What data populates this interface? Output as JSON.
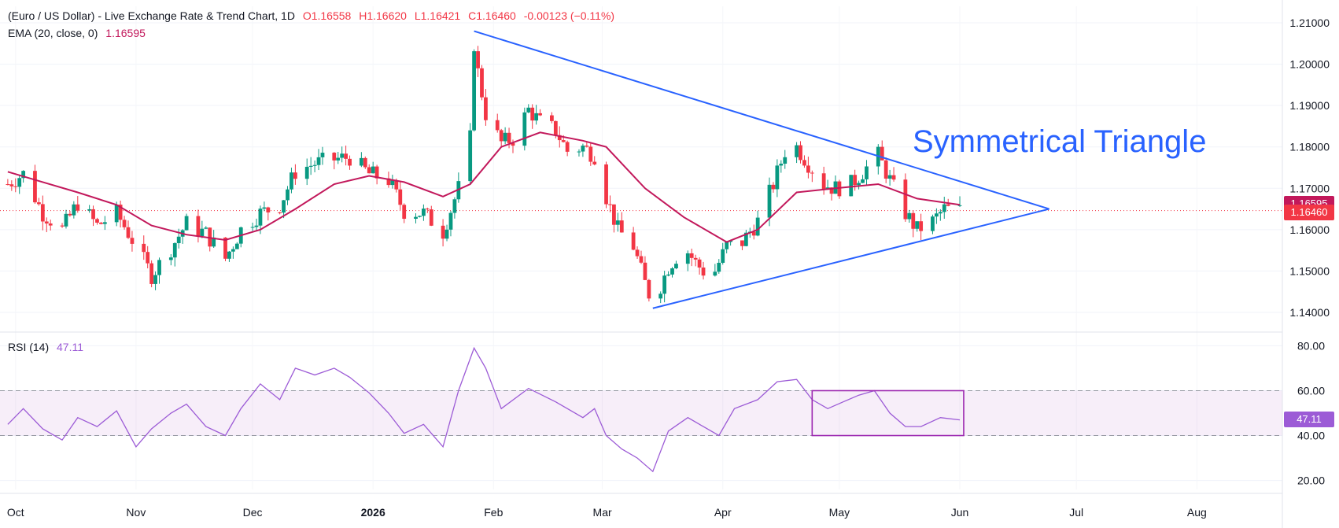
{
  "header": {
    "symbol": "(Euro / US Dollar) - Live Exchange Rate & Trend Chart, 1D",
    "open": "O1.16558",
    "high": "H1.16620",
    "low": "L1.16421",
    "close": "C1.16460",
    "change": "-0.00123 (−0.11%)",
    "ema_label": "EMA (20, close, 0)",
    "ema_value": "1.16595",
    "rsi_label": "RSI (14)",
    "rsi_value": "47.11"
  },
  "annotation": "Symmetrical Triangle",
  "price_tags": {
    "ema": "1.16595",
    "close": "1.16460",
    "rsi": "47.11"
  },
  "colors": {
    "up": "#089981",
    "down": "#f23645",
    "ema": "#c2185b",
    "rsi": "#9c5bd6",
    "trend": "#2962ff",
    "box": "#9c27b0"
  },
  "chart_data": {
    "type": "candlestick",
    "price_axis": {
      "ylim": [
        1.136,
        1.214
      ],
      "ticks": [
        "1.21000",
        "1.20000",
        "1.19000",
        "1.18000",
        "1.17000",
        "1.16000",
        "1.15000",
        "1.14000"
      ]
    },
    "rsi_axis": {
      "ylim": [
        16,
        84
      ],
      "ticks": [
        "80.00",
        "60.00",
        "40.00",
        "20.00"
      ],
      "band": [
        40,
        60
      ]
    },
    "x_labels": [
      {
        "date": "2025-10-01",
        "label": "Oct"
      },
      {
        "date": "2025-11-01",
        "label": "Nov"
      },
      {
        "date": "2025-12-01",
        "label": "Dec"
      },
      {
        "date": "2026-01-01",
        "label": "2026"
      },
      {
        "date": "2026-02-01",
        "label": "Feb"
      },
      {
        "date": "2026-03-01",
        "label": "Mar"
      },
      {
        "date": "2026-04-01",
        "label": "Apr"
      },
      {
        "date": "2026-05-01",
        "label": "May"
      },
      {
        "date": "2026-06-01",
        "label": "Jun"
      },
      {
        "date": "2026-07-01",
        "label": "Jul"
      },
      {
        "date": "2026-08-01",
        "label": "Aug"
      }
    ],
    "x_range": [
      "2025-09-27",
      "2026-08-23"
    ],
    "close_series": [
      [
        "2025-09-29",
        1.171
      ],
      [
        "2025-10-03",
        1.1735
      ],
      [
        "2025-10-08",
        1.164
      ],
      [
        "2025-10-13",
        1.16
      ],
      [
        "2025-10-17",
        1.1665
      ],
      [
        "2025-10-22",
        1.161
      ],
      [
        "2025-10-27",
        1.164
      ],
      [
        "2025-11-01",
        1.156
      ],
      [
        "2025-11-05",
        1.149
      ],
      [
        "2025-11-10",
        1.1555
      ],
      [
        "2025-11-14",
        1.1615
      ],
      [
        "2025-11-19",
        1.159
      ],
      [
        "2025-11-24",
        1.153
      ],
      [
        "2025-11-28",
        1.16
      ],
      [
        "2025-12-03",
        1.164
      ],
      [
        "2025-12-08",
        1.166
      ],
      [
        "2025-12-12",
        1.174
      ],
      [
        "2025-12-17",
        1.176
      ],
      [
        "2025-12-22",
        1.177
      ],
      [
        "2025-12-26",
        1.1775
      ],
      [
        "2025-12-31",
        1.1735
      ],
      [
        "2026-01-05",
        1.172
      ],
      [
        "2026-01-09",
        1.1645
      ],
      [
        "2026-01-14",
        1.164
      ],
      [
        "2026-01-19",
        1.1595
      ],
      [
        "2026-01-23",
        1.17
      ],
      [
        "2026-01-26",
        1.182
      ],
      [
        "2026-01-27",
        1.205
      ],
      [
        "2026-01-28",
        1.198
      ],
      [
        "2026-01-30",
        1.188
      ],
      [
        "2026-02-03",
        1.181
      ],
      [
        "2026-02-06",
        1.182
      ],
      [
        "2026-02-10",
        1.189
      ],
      [
        "2026-02-13",
        1.186
      ],
      [
        "2026-02-17",
        1.184
      ],
      [
        "2026-02-20",
        1.179
      ],
      [
        "2026-02-24",
        1.18
      ],
      [
        "2026-02-27",
        1.178
      ],
      [
        "2026-03-02",
        1.168
      ],
      [
        "2026-03-05",
        1.16
      ],
      [
        "2026-03-09",
        1.156
      ],
      [
        "2026-03-12",
        1.147
      ],
      [
        "2026-03-14",
        1.142
      ],
      [
        "2026-03-18",
        1.151
      ],
      [
        "2026-03-22",
        1.156
      ],
      [
        "2026-03-25",
        1.152
      ],
      [
        "2026-03-29",
        1.148
      ],
      [
        "2026-04-02",
        1.156
      ],
      [
        "2026-04-06",
        1.157
      ],
      [
        "2026-04-10",
        1.162
      ],
      [
        "2026-04-14",
        1.171
      ],
      [
        "2026-04-17",
        1.179
      ],
      [
        "2026-04-20",
        1.18
      ],
      [
        "2026-04-23",
        1.176
      ],
      [
        "2026-04-27",
        1.171
      ],
      [
        "2026-04-30",
        1.17
      ],
      [
        "2026-05-04",
        1.171
      ],
      [
        "2026-05-07",
        1.174
      ],
      [
        "2026-05-11",
        1.178
      ],
      [
        "2026-05-14",
        1.172
      ],
      [
        "2026-05-18",
        1.164
      ],
      [
        "2026-05-21",
        1.16
      ],
      [
        "2026-05-25",
        1.162
      ],
      [
        "2026-05-28",
        1.165
      ],
      [
        "2026-06-01",
        1.1646
      ]
    ],
    "ema_series": [
      [
        "2025-09-29",
        1.174
      ],
      [
        "2025-10-08",
        1.1715
      ],
      [
        "2025-10-17",
        1.169
      ],
      [
        "2025-10-27",
        1.166
      ],
      [
        "2025-11-05",
        1.161
      ],
      [
        "2025-11-14",
        1.1588
      ],
      [
        "2025-11-24",
        1.1575
      ],
      [
        "2025-12-03",
        1.16
      ],
      [
        "2025-12-12",
        1.165
      ],
      [
        "2025-12-22",
        1.171
      ],
      [
        "2025-12-31",
        1.173
      ],
      [
        "2026-01-09",
        1.1715
      ],
      [
        "2026-01-19",
        1.168
      ],
      [
        "2026-01-26",
        1.171
      ],
      [
        "2026-02-03",
        1.18
      ],
      [
        "2026-02-13",
        1.1835
      ],
      [
        "2026-02-24",
        1.1815
      ],
      [
        "2026-03-02",
        1.18
      ],
      [
        "2026-03-12",
        1.17
      ],
      [
        "2026-03-22",
        1.163
      ],
      [
        "2026-04-02",
        1.157
      ],
      [
        "2026-04-10",
        1.16
      ],
      [
        "2026-04-20",
        1.169
      ],
      [
        "2026-04-30",
        1.17
      ],
      [
        "2026-05-11",
        1.171
      ],
      [
        "2026-05-21",
        1.1675
      ],
      [
        "2026-06-01",
        1.166
      ]
    ],
    "rsi_series": [
      [
        "2025-09-29",
        45
      ],
      [
        "2025-10-03",
        52
      ],
      [
        "2025-10-08",
        43
      ],
      [
        "2025-10-13",
        38
      ],
      [
        "2025-10-17",
        48
      ],
      [
        "2025-10-22",
        44
      ],
      [
        "2025-10-27",
        51
      ],
      [
        "2025-11-01",
        35
      ],
      [
        "2025-11-05",
        43
      ],
      [
        "2025-11-10",
        50
      ],
      [
        "2025-11-14",
        54
      ],
      [
        "2025-11-19",
        44
      ],
      [
        "2025-11-24",
        40
      ],
      [
        "2025-11-28",
        52
      ],
      [
        "2025-12-03",
        63
      ],
      [
        "2025-12-08",
        56
      ],
      [
        "2025-12-12",
        70
      ],
      [
        "2025-12-17",
        67
      ],
      [
        "2025-12-22",
        70
      ],
      [
        "2025-12-26",
        66
      ],
      [
        "2025-12-31",
        59
      ],
      [
        "2026-01-05",
        50
      ],
      [
        "2026-01-09",
        41
      ],
      [
        "2026-01-14",
        45
      ],
      [
        "2026-01-19",
        35
      ],
      [
        "2026-01-23",
        60
      ],
      [
        "2026-01-27",
        79
      ],
      [
        "2026-01-30",
        70
      ],
      [
        "2026-02-03",
        52
      ],
      [
        "2026-02-10",
        61
      ],
      [
        "2026-02-17",
        55
      ],
      [
        "2026-02-24",
        48
      ],
      [
        "2026-02-27",
        52
      ],
      [
        "2026-03-02",
        40
      ],
      [
        "2026-03-06",
        34
      ],
      [
        "2026-03-10",
        30
      ],
      [
        "2026-03-14",
        24
      ],
      [
        "2026-03-18",
        42
      ],
      [
        "2026-03-23",
        48
      ],
      [
        "2026-03-27",
        44
      ],
      [
        "2026-03-31",
        40
      ],
      [
        "2026-04-04",
        52
      ],
      [
        "2026-04-10",
        56
      ],
      [
        "2026-04-15",
        64
      ],
      [
        "2026-04-20",
        65
      ],
      [
        "2026-04-24",
        56
      ],
      [
        "2026-04-28",
        52
      ],
      [
        "2026-05-02",
        55
      ],
      [
        "2026-05-06",
        58
      ],
      [
        "2026-05-10",
        60
      ],
      [
        "2026-05-14",
        50
      ],
      [
        "2026-05-18",
        44
      ],
      [
        "2026-05-22",
        44
      ],
      [
        "2026-05-27",
        48
      ],
      [
        "2026-06-01",
        47
      ]
    ],
    "trendlines": [
      {
        "from": [
          "2026-01-27",
          1.208
        ],
        "to": [
          "2026-06-24",
          1.165
        ]
      },
      {
        "from": [
          "2026-03-14",
          1.141
        ],
        "to": [
          "2026-06-24",
          1.165
        ]
      }
    ],
    "rsi_box": {
      "from": [
        "2026-04-24",
        60
      ],
      "to": [
        "2026-06-02",
        40
      ]
    }
  }
}
